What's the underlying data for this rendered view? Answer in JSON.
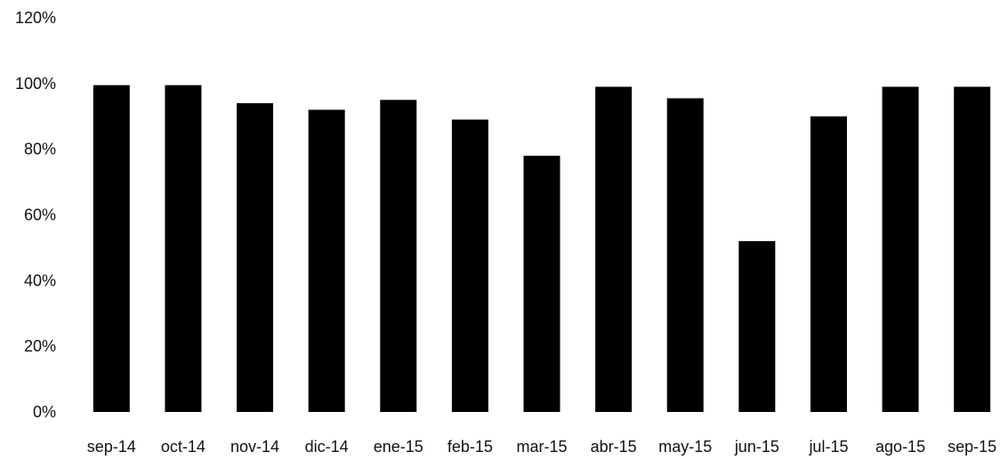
{
  "chart_data": {
    "type": "bar",
    "title": "",
    "xlabel": "",
    "ylabel": "",
    "categories": [
      "sep-14",
      "oct-14",
      "nov-14",
      "dic-14",
      "ene-15",
      "feb-15",
      "mar-15",
      "abr-15",
      "may-15",
      "jun-15",
      "jul-15",
      "ago-15",
      "sep-15"
    ],
    "values": [
      99.5,
      99.5,
      94,
      92,
      95,
      89,
      78,
      99,
      95.5,
      52,
      90,
      99,
      99
    ],
    "ylim": [
      0,
      120
    ],
    "yticks": [
      0,
      20,
      40,
      60,
      80,
      100,
      120
    ],
    "ytick_labels": [
      "0%",
      "20%",
      "40%",
      "60%",
      "80%",
      "100%",
      "120%"
    ],
    "grid": false,
    "legend": "none",
    "bar_color": "#000000"
  }
}
